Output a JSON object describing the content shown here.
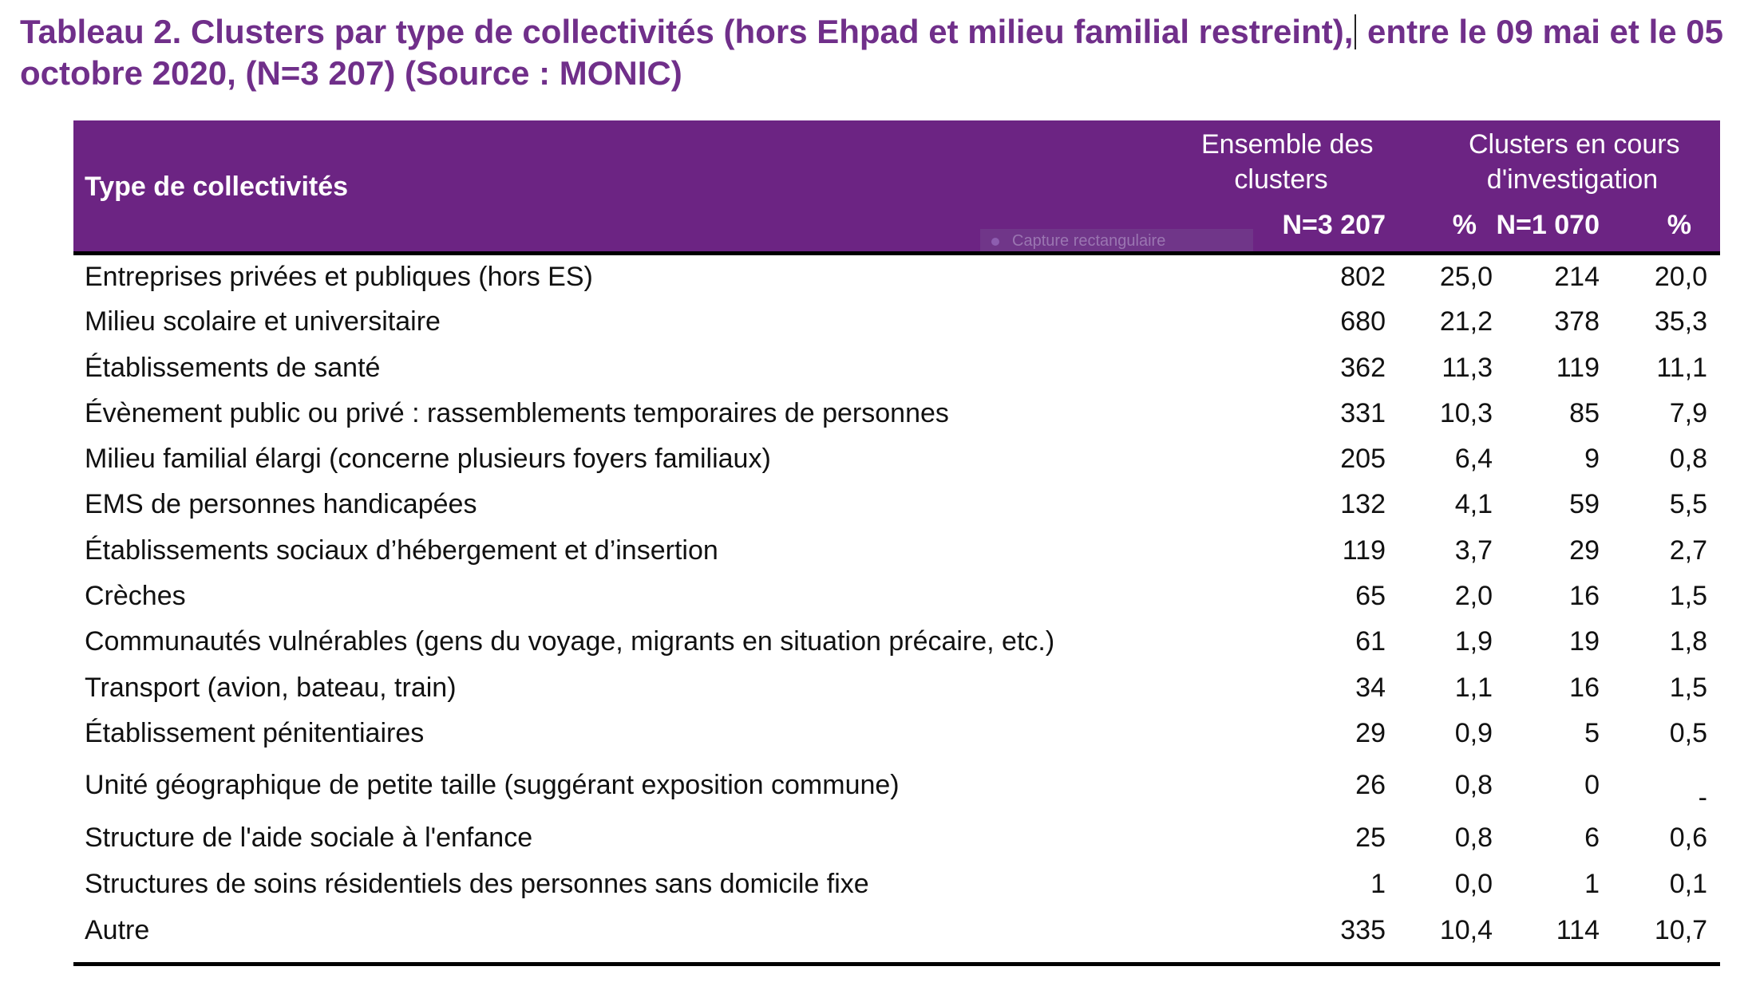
{
  "title": {
    "part1": "Tableau 2. Clusters par type de collectivités (hors Ehpad et milieu familial restreint),",
    "part2": " entre le 09 mai et le 05 octobre 2020, (N=3 207) (Source : MONIC)"
  },
  "colors": {
    "header_bg": "#6c2483",
    "title": "#702f8a"
  },
  "table": {
    "header": {
      "type": "Type de collectivités",
      "group1_line1": "Ensemble des",
      "group1_line2": "clusters",
      "group2_line1": "Clusters en cours",
      "group2_line2": "d'investigation",
      "n1": "N=3 207",
      "p1": "%",
      "n2": "N=1 070",
      "p2": "%"
    },
    "rows": [
      {
        "label": "Entreprises privées et publiques (hors ES)",
        "n1": "802",
        "p1": "25,0",
        "n2": "214",
        "p2": "20,0"
      },
      {
        "label": "Milieu scolaire et universitaire",
        "n1": "680",
        "p1": "21,2",
        "n2": "378",
        "p2": "35,3"
      },
      {
        "label": "Établissements de santé",
        "n1": "362",
        "p1": "11,3",
        "n2": "119",
        "p2": "11,1"
      },
      {
        "label": "Évènement public ou privé : rassemblements temporaires de personnes",
        "n1": "331",
        "p1": "10,3",
        "n2": "85",
        "p2": "7,9"
      },
      {
        "label": "Milieu familial élargi (concerne plusieurs foyers familiaux)",
        "n1": "205",
        "p1": "6,4",
        "n2": "9",
        "p2": "0,8"
      },
      {
        "label": "EMS de personnes handicapées",
        "n1": "132",
        "p1": "4,1",
        "n2": "59",
        "p2": "5,5"
      },
      {
        "label": "Établissements sociaux d’hébergement et d’insertion",
        "n1": "119",
        "p1": "3,7",
        "n2": "29",
        "p2": "2,7"
      },
      {
        "label": "Crèches",
        "n1": "65",
        "p1": "2,0",
        "n2": "16",
        "p2": "1,5"
      },
      {
        "label": "Communautés vulnérables (gens du voyage, migrants en situation précaire, etc.)",
        "n1": "61",
        "p1": "1,9",
        "n2": "19",
        "p2": "1,8"
      },
      {
        "label": "Transport (avion, bateau, train)",
        "n1": "34",
        "p1": "1,1",
        "n2": "16",
        "p2": "1,5"
      },
      {
        "label": "Établissement pénitentiaires",
        "n1": "29",
        "p1": "0,9",
        "n2": "5",
        "p2": "0,5"
      },
      {
        "label": "Unité géographique de petite taille (suggérant exposition commune)",
        "n1": "26",
        "p1": "0,8",
        "n2": "0",
        "p2": "-"
      },
      {
        "label": "Structure de l'aide sociale à l'enfance",
        "n1": "25",
        "p1": "0,8",
        "n2": "6",
        "p2": "0,6"
      },
      {
        "label": "Structures de soins résidentiels des personnes sans domicile fixe",
        "n1": "1",
        "p1": "0,0",
        "n2": "1",
        "p2": "0,1"
      },
      {
        "label": "Autre",
        "n1": "335",
        "p1": "10,4",
        "n2": "114",
        "p2": "10,7"
      }
    ]
  },
  "overlay": {
    "label": "Capture rectangulaire"
  }
}
